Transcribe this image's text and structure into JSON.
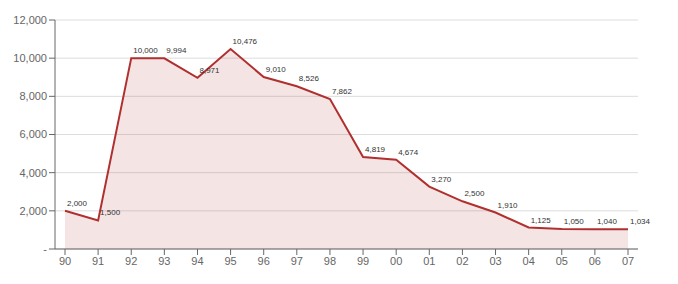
{
  "chart_data": {
    "type": "area",
    "categories": [
      "90",
      "91",
      "92",
      "93",
      "94",
      "95",
      "96",
      "97",
      "98",
      "99",
      "00",
      "01",
      "02",
      "03",
      "04",
      "05",
      "06",
      "07"
    ],
    "values": [
      2000,
      1500,
      10000,
      9994,
      8971,
      10476,
      9010,
      8526,
      7862,
      4819,
      4674,
      3270,
      2500,
      1910,
      1125,
      1050,
      1040,
      1034
    ],
    "value_labels": [
      "2,000",
      "1,500",
      "10,000",
      "9,994",
      "8,971",
      "10,476",
      "9,010",
      "8,526",
      "7,862",
      "4,819",
      "4,674",
      "3,270",
      "2,500",
      "1,910",
      "1,125",
      "1,050",
      "1,040",
      "1,034"
    ],
    "color": "#B03030",
    "ylim": [
      0,
      12000
    ],
    "yticks": [
      {
        "value": 0,
        "label": "-"
      },
      {
        "value": 2000,
        "label": "2,000"
      },
      {
        "value": 4000,
        "label": "4,000"
      },
      {
        "value": 6000,
        "label": "6,000"
      },
      {
        "value": 8000,
        "label": "8,000"
      },
      {
        "value": 10000,
        "label": "10,000"
      },
      {
        "value": 12000,
        "label": "12,000"
      }
    ],
    "grid": true,
    "data_labels": true
  }
}
